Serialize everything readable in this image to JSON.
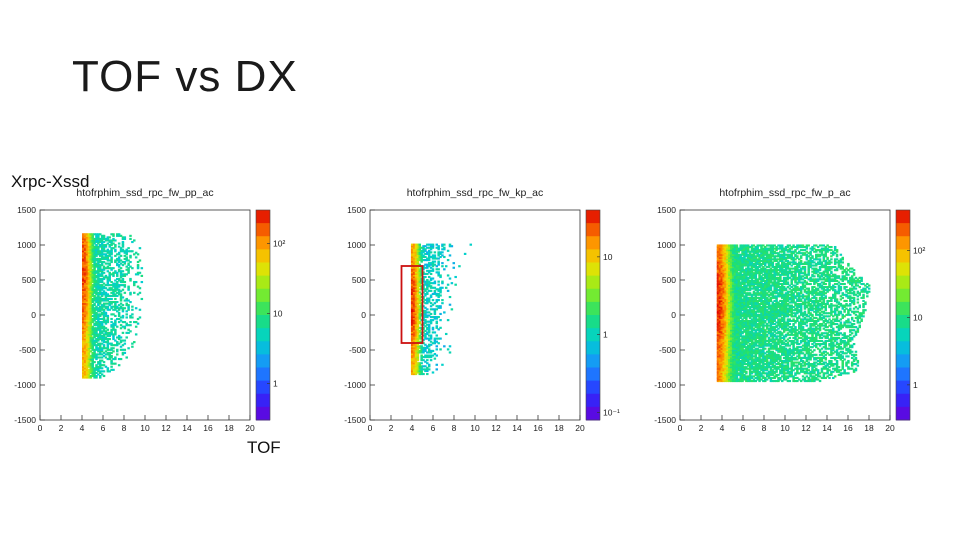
{
  "slide": {
    "title": "TOF vs DX",
    "y_label": "Xrpc-Xssd",
    "x_label": "TOF"
  },
  "chart_data": [
    {
      "type": "heatmap",
      "title": "htofrphim_ssd_rpc_fw_pp_ac",
      "xlim": [
        0,
        20
      ],
      "ylim": [
        -1500,
        1500
      ],
      "x_ticks": [
        "0",
        "2",
        "4",
        "6",
        "8",
        "10",
        "12",
        "14",
        "16",
        "18",
        "20"
      ],
      "y_ticks": [
        "1500",
        "1000",
        "500",
        "0",
        "-500",
        "-1000",
        "-1500"
      ],
      "colorbar": {
        "scale": "log",
        "range": [
          0.3,
          300
        ],
        "tick_labels": [
          "10²",
          "10",
          "1"
        ],
        "tick_values": [
          100,
          10,
          1
        ]
      },
      "band": {
        "x_start": 4.0,
        "x_end": 4.8,
        "y_low": -900,
        "y_high": 1150,
        "extent": [
          {
            "y": 1150,
            "x_end": 8.8
          },
          {
            "y": 900,
            "x_end": 9.6
          },
          {
            "y": 500,
            "x_end": 9.8
          },
          {
            "y": 0,
            "x_end": 9.5
          },
          {
            "y": -500,
            "x_end": 8.8
          },
          {
            "y": -900,
            "x_end": 6.5
          }
        ]
      },
      "peak_bin": {
        "x": 4.5,
        "y": 600,
        "counts": 200
      }
    },
    {
      "type": "heatmap",
      "title": "htofrphim_ssd_rpc_fw_kp_ac",
      "xlim": [
        0,
        20
      ],
      "ylim": [
        -1500,
        1500
      ],
      "x_ticks": [
        "0",
        "2",
        "4",
        "6",
        "8",
        "10",
        "12",
        "14",
        "16",
        "18",
        "20"
      ],
      "y_ticks": [
        "1500",
        "1000",
        "500",
        "0",
        "-500",
        "-1000",
        "-1500"
      ],
      "colorbar": {
        "scale": "log",
        "range": [
          0.08,
          40
        ],
        "tick_labels": [
          "10",
          "1",
          "10⁻¹"
        ],
        "tick_values": [
          10,
          1,
          0.1
        ]
      },
      "band": {
        "x_start": 3.9,
        "x_end": 4.7,
        "y_low": -850,
        "y_high": 1000,
        "extent": [
          {
            "y": 1000,
            "x_end": 9.5
          },
          {
            "y": 700,
            "x_end": 8.5
          },
          {
            "y": 300,
            "x_end": 8.0
          },
          {
            "y": -200,
            "x_end": 8.0
          },
          {
            "y": -600,
            "x_end": 7.5
          },
          {
            "y": -850,
            "x_end": 6.0
          }
        ]
      },
      "annotation_box": {
        "x": [
          3.0,
          5.0
        ],
        "y": [
          -400,
          700
        ],
        "color": "#cc1111"
      },
      "peak_bin": {
        "x": 4.3,
        "y": 150,
        "counts": 30
      }
    },
    {
      "type": "heatmap",
      "title": "htofrphim_ssd_rpc_fw_p_ac",
      "xlim": [
        0,
        20
      ],
      "ylim": [
        -1500,
        1500
      ],
      "x_ticks": [
        "0",
        "2",
        "4",
        "6",
        "8",
        "10",
        "12",
        "14",
        "16",
        "18",
        "20"
      ],
      "y_ticks": [
        "1500",
        "1000",
        "500",
        "0",
        "-500",
        "-1000",
        "-1500"
      ],
      "colorbar": {
        "scale": "log",
        "range": [
          0.3,
          400
        ],
        "tick_labels": [
          "10²",
          "10",
          "1"
        ],
        "tick_values": [
          100,
          10,
          1
        ]
      },
      "band": {
        "x_start": 3.5,
        "x_end": 5.0,
        "y_low": -950,
        "y_high": 1000,
        "extent": [
          {
            "y": 1000,
            "x_end": 14.5
          },
          {
            "y": 800,
            "x_end": 15.5
          },
          {
            "y": 400,
            "x_end": 18.0
          },
          {
            "y": 0,
            "x_end": 17.5
          },
          {
            "y": -400,
            "x_end": 16.5
          },
          {
            "y": -800,
            "x_end": 17.0
          },
          {
            "y": -950,
            "x_end": 13.5
          }
        ]
      },
      "peak_bin": {
        "x": 4.3,
        "y": 150,
        "counts": 300
      }
    }
  ]
}
